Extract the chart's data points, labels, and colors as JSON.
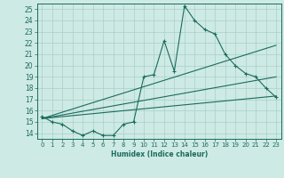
{
  "title": "",
  "xlabel": "Humidex (Indice chaleur)",
  "ylabel": "",
  "bg_color": "#ceeae4",
  "line_color": "#1a6b5e",
  "grid_color": "#a8cfc8",
  "xlim": [
    -0.5,
    23.5
  ],
  "ylim": [
    13.5,
    25.5
  ],
  "xticks": [
    0,
    1,
    2,
    3,
    4,
    5,
    6,
    7,
    8,
    9,
    10,
    11,
    12,
    13,
    14,
    15,
    16,
    17,
    18,
    19,
    20,
    21,
    22,
    23
  ],
  "yticks": [
    14,
    15,
    16,
    17,
    18,
    19,
    20,
    21,
    22,
    23,
    24,
    25
  ],
  "series1": {
    "x": [
      0,
      1,
      2,
      3,
      4,
      5,
      6,
      7,
      8,
      9,
      10,
      11,
      12,
      13,
      14,
      15,
      16,
      17,
      18,
      19,
      20,
      21,
      22,
      23
    ],
    "y": [
      15.5,
      15.0,
      14.8,
      14.2,
      13.8,
      14.2,
      13.8,
      13.8,
      14.8,
      15.0,
      19.0,
      19.2,
      22.2,
      19.5,
      25.3,
      24.0,
      23.2,
      22.8,
      21.0,
      20.0,
      19.3,
      19.0,
      18.0,
      17.2
    ]
  },
  "series2": {
    "x": [
      0,
      23
    ],
    "y": [
      15.3,
      17.3
    ]
  },
  "series3": {
    "x": [
      0,
      23
    ],
    "y": [
      15.3,
      19.0
    ]
  },
  "series4": {
    "x": [
      0,
      23
    ],
    "y": [
      15.3,
      21.8
    ]
  }
}
